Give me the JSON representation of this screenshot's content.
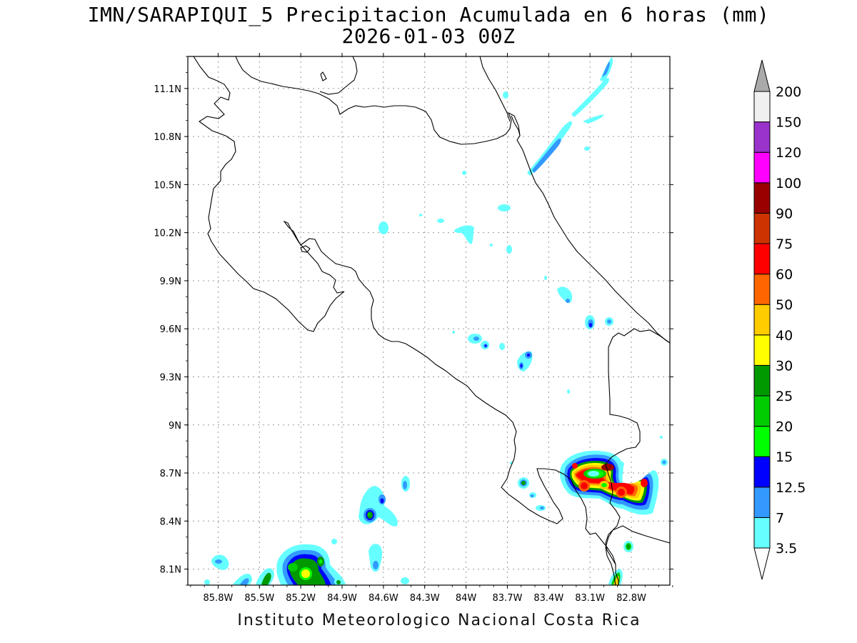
{
  "title": {
    "line1": "IMN/SARAPIQUI_5 Precipitacion Acumulada en 6 horas (mm)",
    "line2": "2026-01-03 00Z"
  },
  "footer": "Instituto Meteorologico Nacional Costa Rica",
  "map": {
    "lon_range": [
      -86.02,
      -82.52
    ],
    "lat_range": [
      8.0,
      11.3
    ],
    "lat_ticks": [
      "11.1N",
      "10.8N",
      "10.5N",
      "10.2N",
      "9.9N",
      "9.6N",
      "9.3N",
      "9N",
      "8.7N",
      "8.4N",
      "8.1N"
    ],
    "lat_values": [
      11.1,
      10.8,
      10.5,
      10.2,
      9.9,
      9.6,
      9.3,
      9.0,
      8.7,
      8.4,
      8.1
    ],
    "lon_ticks": [
      "85.8W",
      "85.5W",
      "85.2W",
      "84.9W",
      "84.6W",
      "84.3W",
      "84W",
      "83.7W",
      "83.4W",
      "83.1W",
      "82.8W"
    ],
    "lon_values": [
      -85.8,
      -85.5,
      -85.2,
      -84.9,
      -84.6,
      -84.3,
      -84.0,
      -83.7,
      -83.4,
      -83.1,
      -82.8
    ],
    "grid": true
  },
  "colorbar": {
    "levels": [
      "3.5",
      "7",
      "12.5",
      "15",
      "20",
      "25",
      "30",
      "40",
      "50",
      "60",
      "75",
      "90",
      "100",
      "120",
      "150",
      "200"
    ],
    "colors": [
      "#66ffff",
      "#3399ff",
      "#0000ff",
      "#00ff00",
      "#00cc00",
      "#009900",
      "#ffff00",
      "#ffcc00",
      "#ff6600",
      "#ff0000",
      "#cc3300",
      "#990000",
      "#ff00ff",
      "#9933cc",
      "#f0f0f0",
      "#aaaaaa"
    ]
  },
  "precip_cells": [
    {
      "lon": -83.04,
      "lat": 8.72,
      "rx": 28,
      "ry": 12,
      "level": 9
    },
    {
      "lon": -82.92,
      "lat": 8.73,
      "rx": 14,
      "ry": 8,
      "level": 10
    },
    {
      "lon": -83.08,
      "lat": 8.62,
      "rx": 10,
      "ry": 8,
      "level": 9
    },
    {
      "lon": -82.97,
      "lat": 8.62,
      "rx": 8,
      "ry": 7,
      "level": 7
    },
    {
      "lon": -82.84,
      "lat": 8.57,
      "rx": 14,
      "ry": 9,
      "level": 9
    },
    {
      "lon": -82.73,
      "lat": 8.62,
      "rx": 8,
      "ry": 9,
      "level": 8
    },
    {
      "lon": -84.61,
      "lat": 8.43,
      "rx": 7,
      "ry": 7,
      "level": 5
    },
    {
      "lon": -84.55,
      "lat": 8.53,
      "rx": 5,
      "ry": 6,
      "level": 3
    },
    {
      "lon": -85.2,
      "lat": 8.13,
      "rx": 13,
      "ry": 10,
      "level": 6
    },
    {
      "lon": -85.17,
      "lat": 8.08,
      "rx": 8,
      "ry": 7,
      "level": 7
    },
    {
      "lon": -85.05,
      "lat": 8.18,
      "rx": 6,
      "ry": 6,
      "level": 5
    },
    {
      "lon": -85.43,
      "lat": 8.05,
      "rx": 6,
      "ry": 5,
      "level": 4
    },
    {
      "lon": -82.85,
      "lat": 8.07,
      "rx": 5,
      "ry": 7,
      "level": 8
    },
    {
      "lon": -82.81,
      "lat": 8.26,
      "rx": 4,
      "ry": 4,
      "level": 5
    },
    {
      "lon": -83.19,
      "lat": 9.63,
      "rx": 5,
      "ry": 6,
      "level": 2
    },
    {
      "lon": -83.54,
      "lat": 9.4,
      "rx": 5,
      "ry": 8,
      "level": 2
    },
    {
      "lon": -83.79,
      "lat": 9.51,
      "rx": 4,
      "ry": 4,
      "level": 3
    },
    {
      "lon": -83.6,
      "lat": 8.65,
      "rx": 5,
      "ry": 5,
      "level": 4
    },
    {
      "lon": -84.39,
      "lat": 8.62,
      "rx": 3,
      "ry": 5,
      "level": 1
    },
    {
      "lon": -84.56,
      "lat": 8.22,
      "rx": 5,
      "ry": 8,
      "level": 1
    },
    {
      "lon": -85.63,
      "lat": 8.17,
      "rx": 4,
      "ry": 4,
      "level": 1
    },
    {
      "lon": -83.04,
      "lat": 10.73,
      "rx": 6,
      "ry": 6,
      "level": 1
    },
    {
      "lon": -83.0,
      "lat": 11.2,
      "rx": 3,
      "ry": 10,
      "level": 1
    }
  ]
}
